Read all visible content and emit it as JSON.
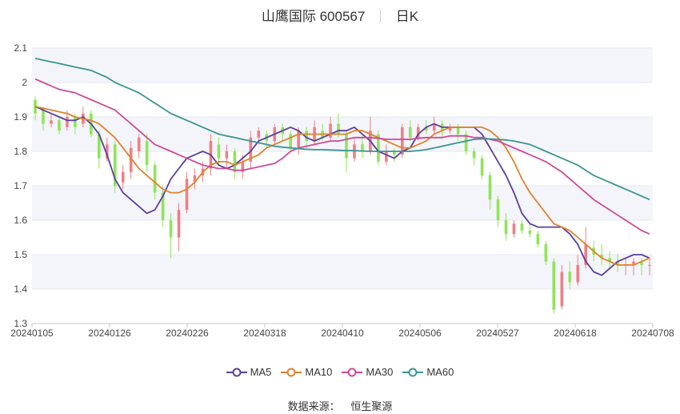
{
  "header": {
    "title": "山鹰国际 600567",
    "period": "日K"
  },
  "source": {
    "label": "数据来源：",
    "name": "恒生聚源"
  },
  "chart_data": {
    "type": "candlestick",
    "y_ticks": [
      "1.3",
      "1.4",
      "1.5",
      "1.6",
      "1.7",
      "1.8",
      "1.9",
      "2",
      "2.1"
    ],
    "ylim": [
      1.3,
      2.1
    ],
    "x_tick_labels": [
      "20240105",
      "20240126",
      "20240226",
      "20240318",
      "20240410",
      "20240506",
      "20240527",
      "20240618",
      "20240708"
    ],
    "colors": {
      "up": "#f07f85",
      "down": "#8fe45a",
      "grid_band": "#f4f5fa"
    },
    "ma_series": [
      {
        "name": "MA5",
        "color": "#5a3ea0",
        "values": [
          1.93,
          1.92,
          1.91,
          1.9,
          1.89,
          1.89,
          1.9,
          1.88,
          1.85,
          1.79,
          1.72,
          1.68,
          1.66,
          1.64,
          1.62,
          1.63,
          1.67,
          1.72,
          1.75,
          1.78,
          1.79,
          1.8,
          1.79,
          1.76,
          1.75,
          1.76,
          1.78,
          1.8,
          1.83,
          1.84,
          1.85,
          1.86,
          1.87,
          1.86,
          1.84,
          1.83,
          1.84,
          1.85,
          1.86,
          1.86,
          1.87,
          1.85,
          1.83,
          1.8,
          1.79,
          1.78,
          1.8,
          1.81,
          1.85,
          1.87,
          1.88,
          1.87,
          1.87,
          1.87,
          1.87,
          1.87,
          1.85,
          1.81,
          1.77,
          1.73,
          1.68,
          1.62,
          1.59,
          1.58,
          1.58,
          1.58,
          1.58,
          1.56,
          1.53,
          1.48,
          1.45,
          1.44,
          1.46,
          1.48,
          1.49,
          1.5,
          1.5,
          1.49
        ]
      },
      {
        "name": "MA10",
        "color": "#e0822c",
        "values": [
          1.93,
          1.925,
          1.92,
          1.915,
          1.91,
          1.9,
          1.895,
          1.89,
          1.88,
          1.86,
          1.84,
          1.81,
          1.78,
          1.75,
          1.73,
          1.71,
          1.69,
          1.68,
          1.68,
          1.69,
          1.71,
          1.74,
          1.76,
          1.77,
          1.77,
          1.76,
          1.77,
          1.78,
          1.79,
          1.81,
          1.82,
          1.83,
          1.84,
          1.85,
          1.85,
          1.85,
          1.85,
          1.85,
          1.85,
          1.85,
          1.86,
          1.86,
          1.85,
          1.84,
          1.83,
          1.82,
          1.81,
          1.81,
          1.82,
          1.83,
          1.85,
          1.86,
          1.87,
          1.87,
          1.87,
          1.87,
          1.87,
          1.86,
          1.84,
          1.81,
          1.77,
          1.72,
          1.68,
          1.65,
          1.62,
          1.59,
          1.58,
          1.57,
          1.55,
          1.53,
          1.51,
          1.49,
          1.48,
          1.47,
          1.47,
          1.47,
          1.48,
          1.49
        ]
      },
      {
        "name": "MA30",
        "color": "#d0489a",
        "values": [
          2.01,
          2.0,
          1.99,
          1.98,
          1.975,
          1.97,
          1.96,
          1.95,
          1.94,
          1.93,
          1.92,
          1.9,
          1.88,
          1.86,
          1.84,
          1.82,
          1.81,
          1.8,
          1.79,
          1.78,
          1.77,
          1.76,
          1.755,
          1.75,
          1.75,
          1.745,
          1.745,
          1.75,
          1.755,
          1.76,
          1.765,
          1.78,
          1.8,
          1.81,
          1.815,
          1.82,
          1.825,
          1.83,
          1.83,
          1.835,
          1.84,
          1.84,
          1.84,
          1.838,
          1.835,
          1.835,
          1.835,
          1.835,
          1.838,
          1.84,
          1.84,
          1.84,
          1.845,
          1.845,
          1.845,
          1.84,
          1.84,
          1.835,
          1.83,
          1.82,
          1.81,
          1.8,
          1.79,
          1.78,
          1.77,
          1.755,
          1.74,
          1.72,
          1.7,
          1.68,
          1.66,
          1.645,
          1.63,
          1.615,
          1.6,
          1.585,
          1.57,
          1.56
        ]
      },
      {
        "name": "MA60",
        "color": "#3a9494",
        "values": [
          2.07,
          2.065,
          2.06,
          2.055,
          2.05,
          2.045,
          2.04,
          2.035,
          2.025,
          2.015,
          2.0,
          1.99,
          1.98,
          1.97,
          1.955,
          1.94,
          1.925,
          1.91,
          1.9,
          1.89,
          1.88,
          1.87,
          1.86,
          1.85,
          1.845,
          1.84,
          1.835,
          1.83,
          1.825,
          1.82,
          1.815,
          1.812,
          1.81,
          1.808,
          1.806,
          1.805,
          1.805,
          1.804,
          1.803,
          1.802,
          1.802,
          1.801,
          1.8,
          1.8,
          1.8,
          1.8,
          1.8,
          1.8,
          1.802,
          1.805,
          1.81,
          1.815,
          1.82,
          1.825,
          1.83,
          1.835,
          1.836,
          1.836,
          1.835,
          1.833,
          1.83,
          1.825,
          1.82,
          1.81,
          1.8,
          1.79,
          1.78,
          1.77,
          1.76,
          1.745,
          1.73,
          1.72,
          1.71,
          1.7,
          1.69,
          1.68,
          1.67,
          1.66
        ]
      }
    ],
    "candles": [
      [
        1.95,
        1.91,
        1.96,
        1.89
      ],
      [
        1.92,
        1.88,
        1.93,
        1.86
      ],
      [
        1.88,
        1.89,
        1.91,
        1.87
      ],
      [
        1.89,
        1.86,
        1.9,
        1.85
      ],
      [
        1.87,
        1.9,
        1.92,
        1.86
      ],
      [
        1.9,
        1.87,
        1.91,
        1.85
      ],
      [
        1.88,
        1.91,
        1.93,
        1.87
      ],
      [
        1.91,
        1.85,
        1.92,
        1.84
      ],
      [
        1.85,
        1.78,
        1.86,
        1.75
      ],
      [
        1.78,
        1.82,
        1.84,
        1.77
      ],
      [
        1.82,
        1.7,
        1.83,
        1.68
      ],
      [
        1.71,
        1.74,
        1.76,
        1.69
      ],
      [
        1.74,
        1.81,
        1.83,
        1.72
      ],
      [
        1.8,
        1.84,
        1.85,
        1.78
      ],
      [
        1.83,
        1.76,
        1.85,
        1.74
      ],
      [
        1.76,
        1.68,
        1.77,
        1.66
      ],
      [
        1.68,
        1.6,
        1.7,
        1.58
      ],
      [
        1.6,
        1.55,
        1.62,
        1.49
      ],
      [
        1.55,
        1.63,
        1.65,
        1.51
      ],
      [
        1.63,
        1.72,
        1.74,
        1.62
      ],
      [
        1.71,
        1.73,
        1.75,
        1.69
      ],
      [
        1.73,
        1.75,
        1.77,
        1.71
      ],
      [
        1.75,
        1.83,
        1.85,
        1.73
      ],
      [
        1.82,
        1.78,
        1.84,
        1.76
      ],
      [
        1.78,
        1.8,
        1.82,
        1.75
      ],
      [
        1.8,
        1.74,
        1.81,
        1.72
      ],
      [
        1.74,
        1.77,
        1.79,
        1.72
      ],
      [
        1.77,
        1.84,
        1.86,
        1.75
      ],
      [
        1.84,
        1.86,
        1.87,
        1.82
      ],
      [
        1.85,
        1.83,
        1.86,
        1.81
      ],
      [
        1.83,
        1.87,
        1.88,
        1.82
      ],
      [
        1.87,
        1.85,
        1.88,
        1.83
      ],
      [
        1.85,
        1.81,
        1.86,
        1.8
      ],
      [
        1.81,
        1.86,
        1.87,
        1.79
      ],
      [
        1.86,
        1.83,
        1.87,
        1.81
      ],
      [
        1.83,
        1.87,
        1.89,
        1.82
      ],
      [
        1.86,
        1.84,
        1.88,
        1.83
      ],
      [
        1.84,
        1.88,
        1.9,
        1.83
      ],
      [
        1.88,
        1.85,
        1.91,
        1.84
      ],
      [
        1.85,
        1.78,
        1.86,
        1.74
      ],
      [
        1.78,
        1.82,
        1.84,
        1.77
      ],
      [
        1.82,
        1.8,
        1.85,
        1.78
      ],
      [
        1.8,
        1.86,
        1.9,
        1.79
      ],
      [
        1.85,
        1.77,
        1.86,
        1.76
      ],
      [
        1.77,
        1.8,
        1.82,
        1.76
      ],
      [
        1.8,
        1.79,
        1.81,
        1.77
      ],
      [
        1.79,
        1.87,
        1.88,
        1.78
      ],
      [
        1.87,
        1.84,
        1.89,
        1.83
      ],
      [
        1.84,
        1.87,
        1.88,
        1.83
      ],
      [
        1.87,
        1.86,
        1.89,
        1.85
      ],
      [
        1.86,
        1.88,
        1.9,
        1.85
      ],
      [
        1.88,
        1.86,
        1.89,
        1.84
      ],
      [
        1.86,
        1.87,
        1.88,
        1.85
      ],
      [
        1.87,
        1.85,
        1.88,
        1.83
      ],
      [
        1.85,
        1.8,
        1.86,
        1.79
      ],
      [
        1.8,
        1.78,
        1.81,
        1.76
      ],
      [
        1.78,
        1.73,
        1.79,
        1.72
      ],
      [
        1.73,
        1.66,
        1.74,
        1.63
      ],
      [
        1.66,
        1.6,
        1.67,
        1.58
      ],
      [
        1.6,
        1.56,
        1.62,
        1.54
      ],
      [
        1.56,
        1.59,
        1.6,
        1.55
      ],
      [
        1.59,
        1.57,
        1.6,
        1.56
      ],
      [
        1.57,
        1.56,
        1.59,
        1.55
      ],
      [
        1.56,
        1.53,
        1.57,
        1.52
      ],
      [
        1.53,
        1.48,
        1.54,
        1.47
      ],
      [
        1.48,
        1.34,
        1.49,
        1.33
      ],
      [
        1.35,
        1.45,
        1.47,
        1.34
      ],
      [
        1.45,
        1.42,
        1.48,
        1.4
      ],
      [
        1.42,
        1.47,
        1.5,
        1.41
      ],
      [
        1.47,
        1.53,
        1.58,
        1.46
      ],
      [
        1.52,
        1.5,
        1.54,
        1.48
      ],
      [
        1.5,
        1.49,
        1.53,
        1.47
      ],
      [
        1.49,
        1.48,
        1.51,
        1.46
      ],
      [
        1.48,
        1.47,
        1.5,
        1.45
      ],
      [
        1.47,
        1.47,
        1.49,
        1.44
      ],
      [
        1.47,
        1.48,
        1.49,
        1.44
      ],
      [
        1.48,
        1.47,
        1.49,
        1.44
      ],
      [
        1.47,
        1.47,
        1.49,
        1.44
      ]
    ]
  }
}
